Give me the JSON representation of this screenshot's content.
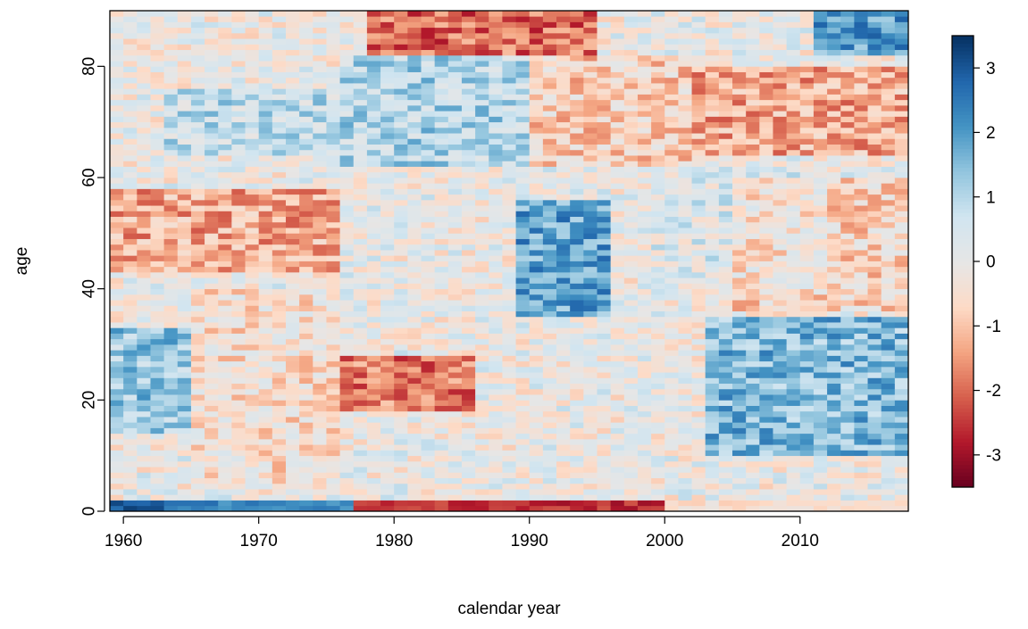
{
  "chart_data": {
    "type": "heatmap",
    "title": "",
    "xlabel": "calendar year",
    "ylabel": "age",
    "x_range": [
      1959,
      2018
    ],
    "y_range": [
      0,
      90
    ],
    "x_ticks": [
      1960,
      1970,
      1980,
      1990,
      2000,
      2010
    ],
    "y_ticks": [
      0,
      20,
      40,
      60,
      80
    ],
    "x_tick_labels": [
      "1960",
      "1970",
      "1980",
      "1990",
      "2000",
      "2010"
    ],
    "y_tick_labels": [
      "0",
      "20",
      "40",
      "60",
      "80"
    ],
    "cell_width_years": 1,
    "cell_height_ages": 1,
    "value_range": [
      -3.5,
      3.5
    ],
    "colorbar": {
      "ticks": [
        3,
        2,
        1,
        0,
        -1,
        -2,
        -3
      ],
      "tick_labels": [
        "3",
        "2",
        "1",
        "0",
        "-1",
        "-2",
        "-3"
      ],
      "colors_low_to_high": [
        "#67001f",
        "#b2182b",
        "#d6604d",
        "#f4a582",
        "#fddbc7",
        "#e6e6e6",
        "#d1e5f0",
        "#92c5de",
        "#4393c3",
        "#2166ac",
        "#053061"
      ]
    },
    "regions": [
      {
        "x": [
          1959,
          1963
        ],
        "y": [
          0,
          2
        ],
        "value": 3.0
      },
      {
        "x": [
          1963,
          1977
        ],
        "y": [
          0,
          2
        ],
        "value": 2.3
      },
      {
        "x": [
          1977,
          2000
        ],
        "y": [
          0,
          2
        ],
        "value": -2.6
      },
      {
        "x": [
          2000,
          2018
        ],
        "y": [
          0,
          2
        ],
        "value": -0.5
      },
      {
        "x": [
          1959,
          1976
        ],
        "y": [
          43,
          58
        ],
        "value": -1.3
      },
      {
        "x": [
          1959,
          1965
        ],
        "y": [
          14,
          33
        ],
        "value": 1.3
      },
      {
        "x": [
          1976,
          1986
        ],
        "y": [
          18,
          28
        ],
        "value": -1.8
      },
      {
        "x": [
          1989,
          1996
        ],
        "y": [
          35,
          56
        ],
        "value": 1.9
      },
      {
        "x": [
          1976,
          1990
        ],
        "y": [
          62,
          82
        ],
        "value": 1.0
      },
      {
        "x": [
          1963,
          1976
        ],
        "y": [
          64,
          76
        ],
        "value": 0.8
      },
      {
        "x": [
          1978,
          1995
        ],
        "y": [
          82,
          90
        ],
        "value": -2.0
      },
      {
        "x": [
          2002,
          2018
        ],
        "y": [
          64,
          80
        ],
        "value": -1.3
      },
      {
        "x": [
          2011,
          2018
        ],
        "y": [
          82,
          90
        ],
        "value": 2.0
      },
      {
        "x": [
          2003,
          2018
        ],
        "y": [
          10,
          35
        ],
        "value": 1.6
      },
      {
        "x": [
          1999,
          2012
        ],
        "y": [
          40,
          62
        ],
        "value": 0.3
      },
      {
        "x": [
          1965,
          1976
        ],
        "y": [
          5,
          40
        ],
        "value": -0.5
      },
      {
        "x": [
          1990,
          2002
        ],
        "y": [
          62,
          82
        ],
        "value": -0.8
      },
      {
        "x": [
          2005,
          2018
        ],
        "y": [
          36,
          60
        ],
        "value": -0.7
      }
    ],
    "grid": false,
    "legend_position": "right"
  }
}
